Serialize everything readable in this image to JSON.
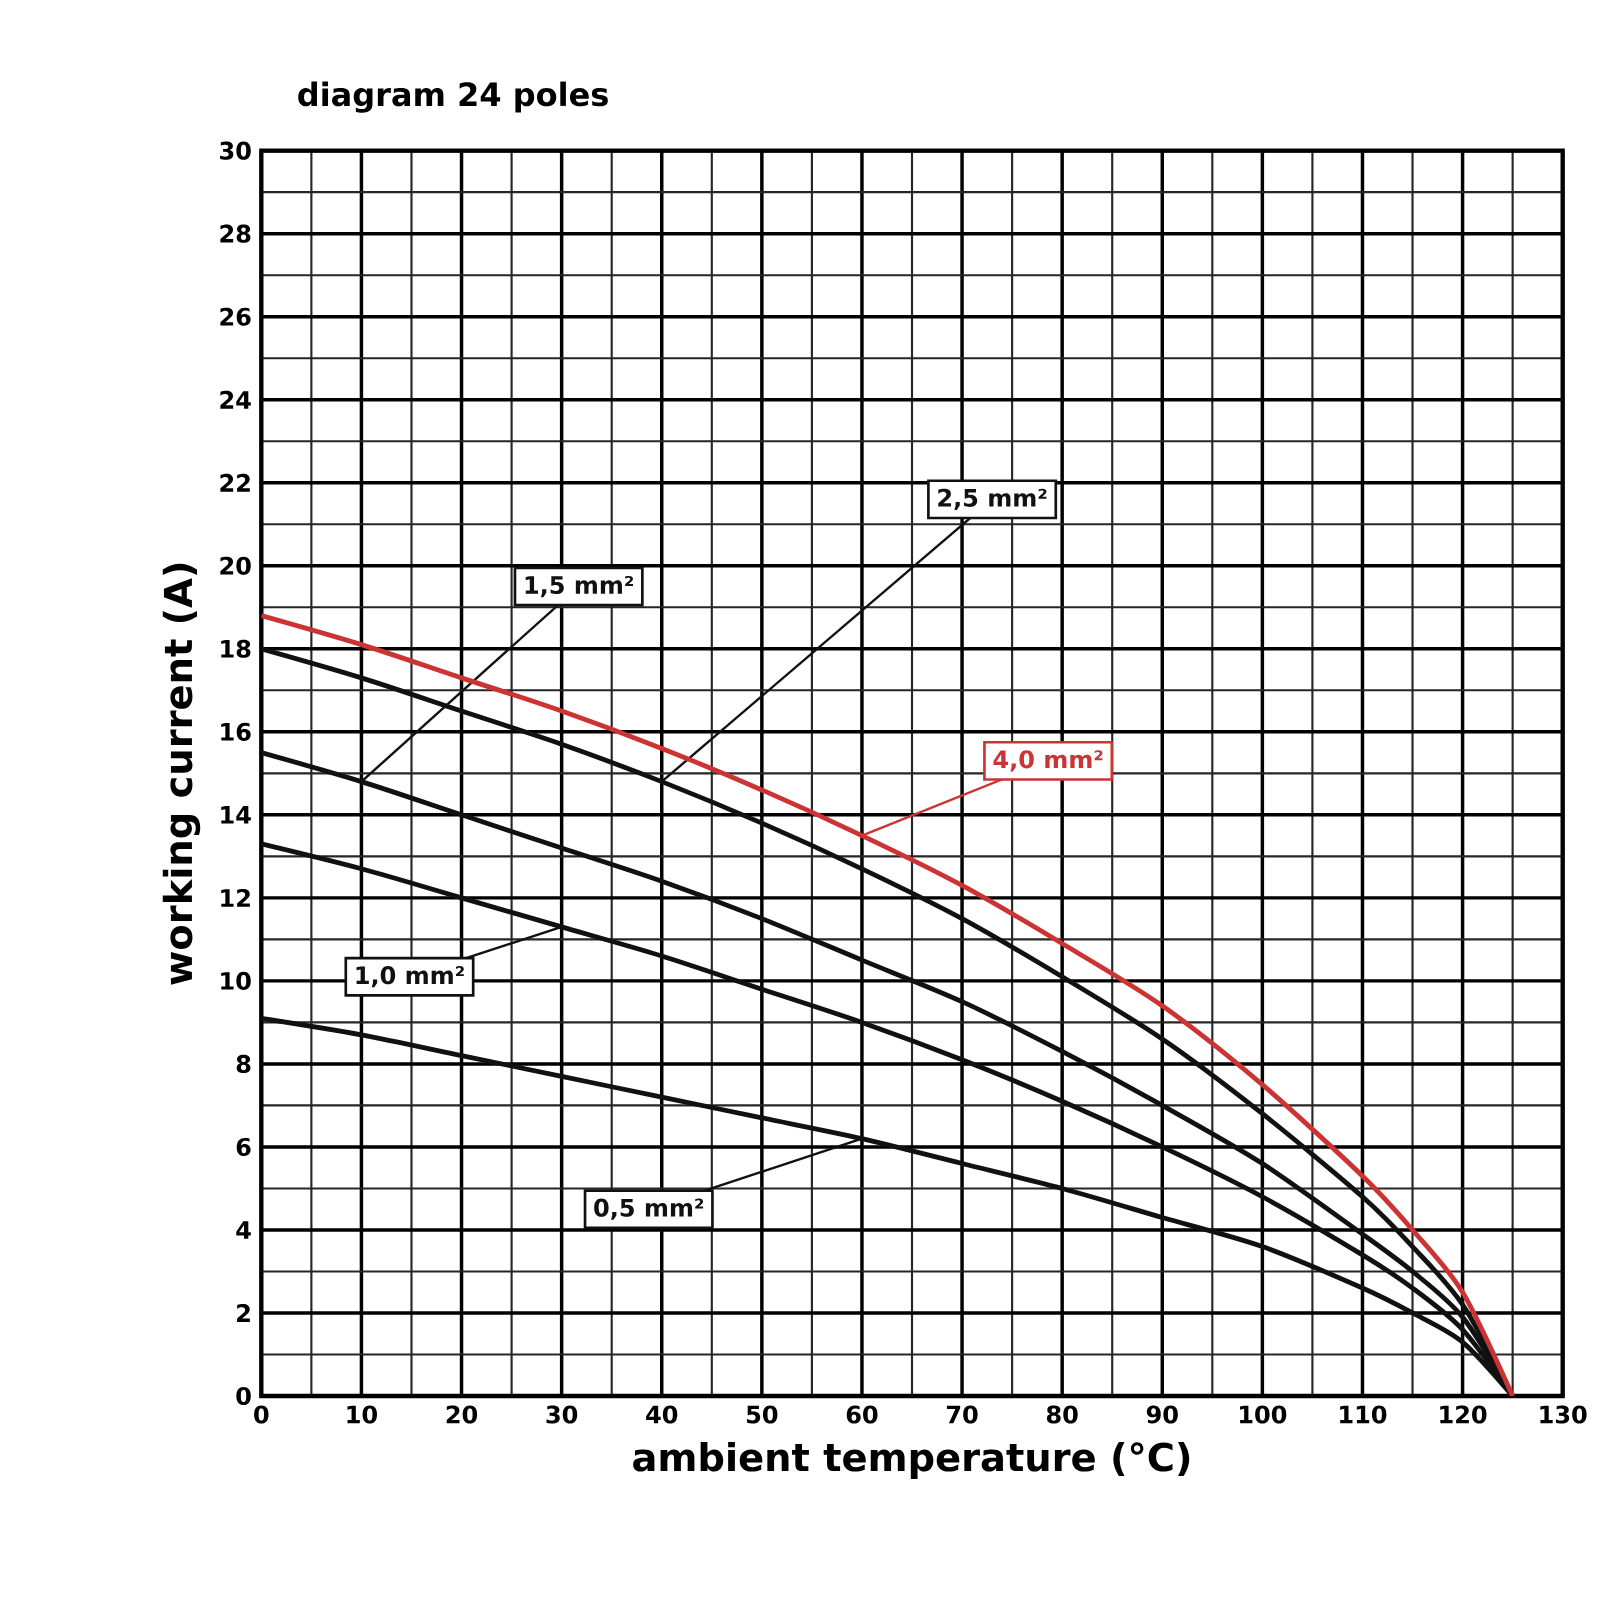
{
  "chart_data": {
    "type": "line",
    "title": "diagram 24 poles",
    "xlabel": "ambient temperature (°C)",
    "ylabel": "working current (A)",
    "x": [
      0,
      10,
      20,
      30,
      40,
      50,
      60,
      70,
      80,
      90,
      100,
      110,
      115,
      120,
      125
    ],
    "series": [
      {
        "name": "0,5 mm²",
        "color": "#111111",
        "values": [
          9.1,
          8.7,
          8.2,
          7.7,
          7.2,
          6.7,
          6.2,
          5.6,
          5.0,
          4.3,
          3.6,
          2.6,
          2.0,
          1.3,
          0
        ]
      },
      {
        "name": "1,0 mm²",
        "color": "#111111",
        "values": [
          13.3,
          12.7,
          12.0,
          11.3,
          10.6,
          9.8,
          9.0,
          8.1,
          7.1,
          6.0,
          4.8,
          3.4,
          2.6,
          1.6,
          0
        ]
      },
      {
        "name": "1,5 mm²",
        "color": "#111111",
        "values": [
          15.5,
          14.8,
          14.0,
          13.2,
          12.4,
          11.5,
          10.5,
          9.5,
          8.3,
          7.0,
          5.6,
          3.9,
          3.0,
          1.9,
          0
        ]
      },
      {
        "name": "2,5 mm²",
        "color": "#111111",
        "values": [
          18.0,
          17.3,
          16.5,
          15.7,
          14.8,
          13.8,
          12.7,
          11.5,
          10.1,
          8.6,
          6.8,
          4.8,
          3.6,
          2.2,
          0
        ]
      },
      {
        "name": "4,0 mm²",
        "color": "#cc3333",
        "values": [
          18.8,
          18.1,
          17.3,
          16.5,
          15.6,
          14.6,
          13.5,
          12.3,
          10.9,
          9.4,
          7.5,
          5.3,
          4.0,
          2.5,
          0
        ]
      }
    ],
    "xlim": [
      0,
      130
    ],
    "xticks": [
      0,
      10,
      20,
      30,
      40,
      50,
      60,
      70,
      80,
      90,
      100,
      110,
      120,
      130
    ],
    "ylim": [
      0,
      30
    ],
    "yticks": [
      0,
      2,
      4,
      6,
      8,
      10,
      12,
      14,
      16,
      18,
      20,
      22,
      24,
      26,
      28,
      30
    ],
    "grid": true,
    "legend": false,
    "marker": "none",
    "line_style": "solid"
  }
}
